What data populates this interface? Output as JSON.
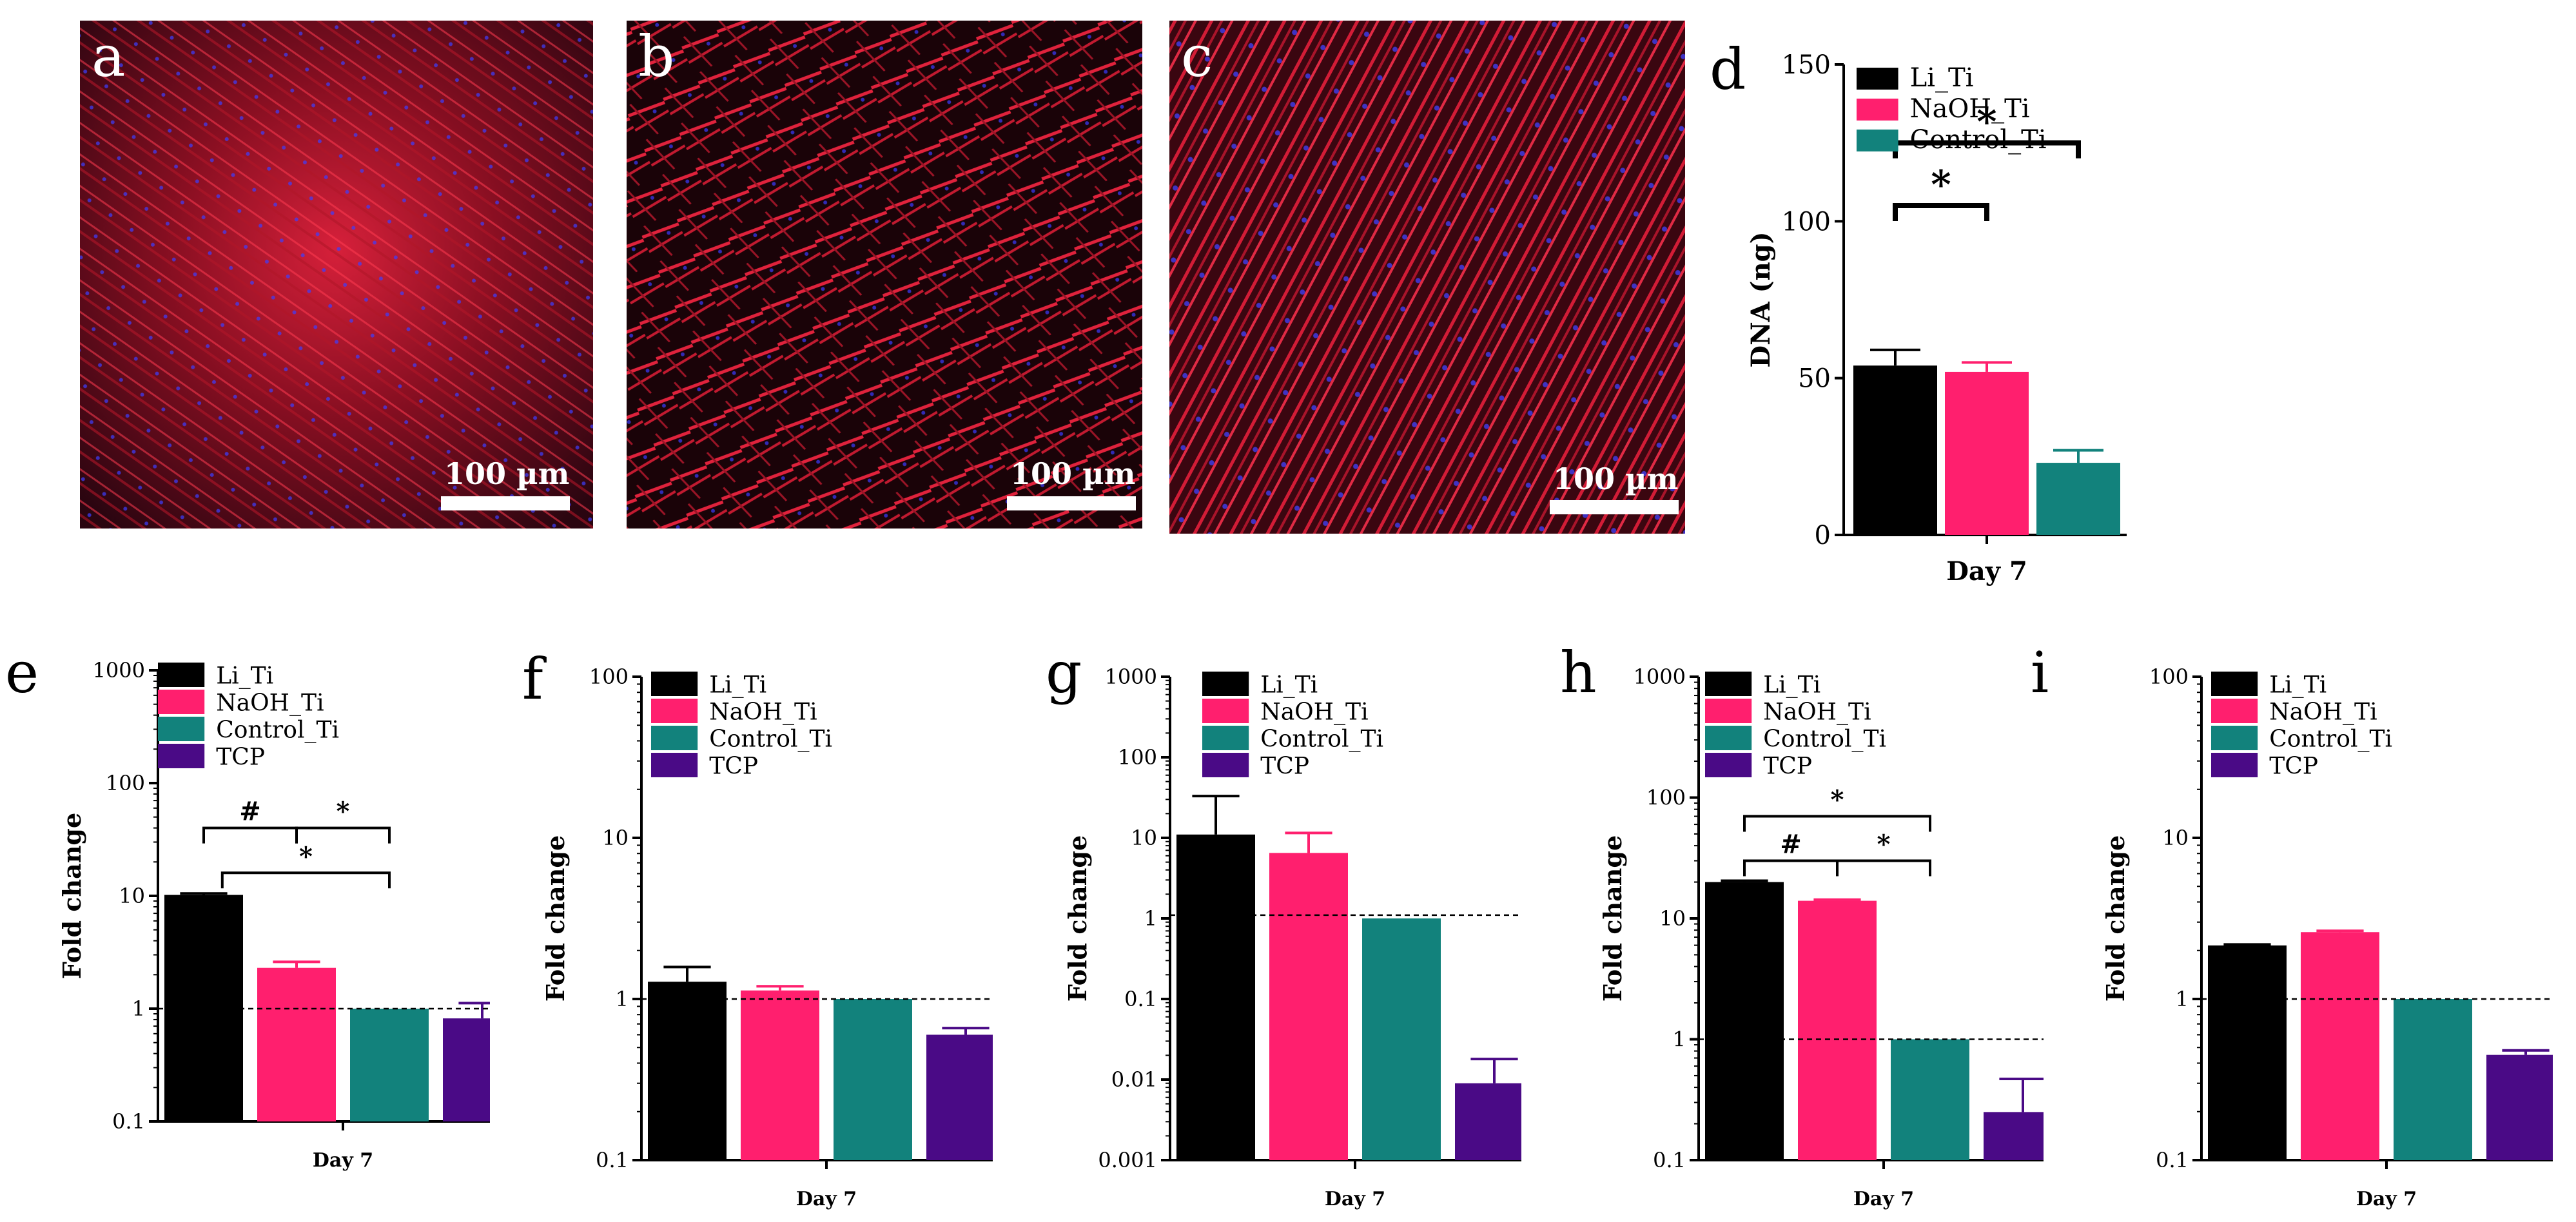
{
  "colors": {
    "Li_Ti": "#000000",
    "NaOH_Ti": "#ff1f6e",
    "Control_Ti": "#12827c",
    "TCP": "#4a0a86"
  },
  "images": [
    {
      "letter": "a",
      "scale_label": "100 µm"
    },
    {
      "letter": "b",
      "scale_label": "100 µm"
    },
    {
      "letter": "c",
      "scale_label": "100 µm"
    }
  ],
  "chart_data": [
    {
      "panel": "d",
      "type": "bar",
      "xlabel": "Day 7",
      "ylabel": "DNA (ng)",
      "yscale": "linear",
      "ylim": [
        0,
        150
      ],
      "yticks": [
        "0",
        "50",
        "100",
        "150"
      ],
      "series": [
        {
          "name": "Li_Ti",
          "value": 54,
          "error": 5
        },
        {
          "name": "NaOH_Ti",
          "value": 52,
          "error": 3
        },
        {
          "name": "Control_Ti",
          "value": 23,
          "error": 4
        }
      ],
      "reference_line": null,
      "annotations": [
        {
          "from": 0,
          "to": 1,
          "label": "*",
          "level": 105
        },
        {
          "from": 0,
          "to": 2,
          "label": "*",
          "level": 125
        }
      ]
    },
    {
      "panel": "e",
      "type": "bar",
      "xlabel": "Day 7",
      "ylabel": "Fold change",
      "yscale": "log",
      "ylim": [
        0.1,
        1000
      ],
      "yticks": [
        "0.1",
        "1",
        "10",
        "100",
        "1000"
      ],
      "series": [
        {
          "name": "Li_Ti",
          "value": 10.2,
          "error": 0.3
        },
        {
          "name": "NaOH_Ti",
          "value": 2.3,
          "error": 0.3
        },
        {
          "name": "Control_Ti",
          "value": 1.0,
          "error": 0
        },
        {
          "name": "TCP",
          "value": 0.82,
          "error": 0.3
        }
      ],
      "reference_line": 1,
      "annotations": [
        {
          "from": 0,
          "to": 1,
          "label": "#",
          "level": 40
        },
        {
          "from": 1,
          "to": 2,
          "label": "*",
          "level": 40
        },
        {
          "from": 0.2,
          "to": 2,
          "label": "*",
          "level": 16
        }
      ]
    },
    {
      "panel": "f",
      "type": "bar",
      "xlabel": "Day 7",
      "ylabel": "Fold change",
      "yscale": "log",
      "ylim": [
        0.1,
        100
      ],
      "yticks": [
        "0.1",
        "1",
        "10",
        "100"
      ],
      "series": [
        {
          "name": "Li_Ti",
          "value": 1.28,
          "error": 0.3
        },
        {
          "name": "NaOH_Ti",
          "value": 1.13,
          "error": 0.07
        },
        {
          "name": "Control_Ti",
          "value": 1.0,
          "error": 0
        },
        {
          "name": "TCP",
          "value": 0.6,
          "error": 0.06
        }
      ],
      "reference_line": 1,
      "annotations": []
    },
    {
      "panel": "g",
      "type": "bar",
      "xlabel": "Day 7",
      "ylabel": "Fold change",
      "yscale": "log",
      "ylim": [
        0.001,
        1000
      ],
      "yticks": [
        "0.001",
        "0.01",
        "0.1",
        "1",
        "10",
        "100",
        "1000"
      ],
      "series": [
        {
          "name": "Li_Ti",
          "value": 11,
          "error": 22
        },
        {
          "name": "NaOH_Ti",
          "value": 6.5,
          "error": 5
        },
        {
          "name": "Control_Ti",
          "value": 1.0,
          "error": 0
        },
        {
          "name": "TCP",
          "value": 0.009,
          "error": 0.009
        }
      ],
      "reference_line": 1.1,
      "annotations": []
    },
    {
      "panel": "h",
      "type": "bar",
      "xlabel": "Day 7",
      "ylabel": "Fold change",
      "yscale": "log",
      "ylim": [
        0.1,
        1000
      ],
      "yticks": [
        "0.1",
        "1",
        "10",
        "100",
        "1000"
      ],
      "series": [
        {
          "name": "Li_Ti",
          "value": 20,
          "error": 0.5
        },
        {
          "name": "NaOH_Ti",
          "value": 14,
          "error": 0.3
        },
        {
          "name": "Control_Ti",
          "value": 1.0,
          "error": 0
        },
        {
          "name": "TCP",
          "value": 0.25,
          "error": 0.22
        }
      ],
      "reference_line": 1,
      "annotations": [
        {
          "from": 0,
          "to": 2,
          "label": "*",
          "level": 70
        },
        {
          "from": 0,
          "to": 1,
          "label": "#",
          "level": 30
        },
        {
          "from": 1,
          "to": 2,
          "label": "*",
          "level": 30
        }
      ]
    },
    {
      "panel": "i",
      "type": "bar",
      "xlabel": "Day 7",
      "ylabel": "Fold change",
      "yscale": "log",
      "ylim": [
        0.1,
        100
      ],
      "yticks": [
        "0.1",
        "1",
        "10",
        "100"
      ],
      "series": [
        {
          "name": "Li_Ti",
          "value": 2.15,
          "error": 0.03
        },
        {
          "name": "NaOH_Ti",
          "value": 2.6,
          "error": 0.05
        },
        {
          "name": "Control_Ti",
          "value": 1.0,
          "error": 0
        },
        {
          "name": "TCP",
          "value": 0.45,
          "error": 0.03
        }
      ],
      "reference_line": 1,
      "annotations": []
    }
  ]
}
